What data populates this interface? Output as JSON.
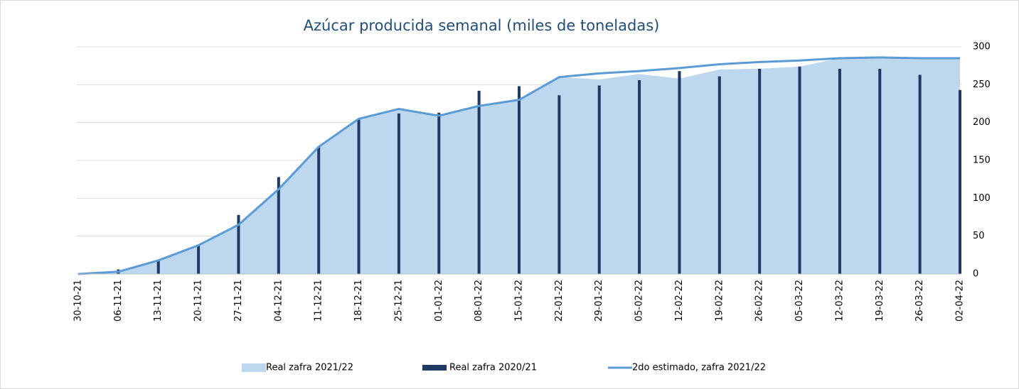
{
  "chart_data": {
    "type": "combo",
    "title": "Azúcar producida semanal (miles de toneladas)",
    "categories": [
      "30-10-21",
      "06-11-21",
      "13-11-21",
      "20-11-21",
      "27-11-21",
      "04-12-21",
      "11-12-21",
      "18-12-21",
      "25-12-21",
      "01-01-22",
      "08-01-22",
      "15-01-22",
      "22-01-22",
      "29-01-22",
      "05-02-22",
      "12-02-22",
      "19-02-22",
      "26-02-22",
      "05-03-22",
      "12-03-22",
      "19-03-22",
      "26-03-22",
      "02-04-22"
    ],
    "series": [
      {
        "name": "Real zafra 2021/22",
        "kind": "area",
        "color": "#bdd7ee",
        "values": [
          0,
          3,
          18,
          38,
          65,
          112,
          168,
          205,
          218,
          210,
          222,
          230,
          260,
          257,
          264,
          258,
          270,
          271,
          274,
          285,
          285,
          285,
          285
        ]
      },
      {
        "name": "Real zafra 2020/21",
        "kind": "bar",
        "color": "#1f3864",
        "values": [
          0,
          6,
          18,
          38,
          78,
          128,
          168,
          205,
          212,
          213,
          242,
          248,
          236,
          249,
          256,
          268,
          261,
          271,
          274,
          271,
          271,
          263,
          243
        ]
      },
      {
        "name": "2do estimado, zafra 2021/22",
        "kind": "line",
        "color": "#5b9bd5",
        "values": [
          0,
          3,
          18,
          38,
          65,
          112,
          168,
          205,
          218,
          209,
          222,
          230,
          260,
          265,
          268,
          272,
          277,
          280,
          282,
          285,
          286,
          285,
          285
        ]
      }
    ],
    "ylim": [
      0,
      300
    ],
    "yticks": [
      0,
      50,
      100,
      150,
      200,
      250,
      300
    ],
    "grid": true,
    "legend": "bottom"
  }
}
